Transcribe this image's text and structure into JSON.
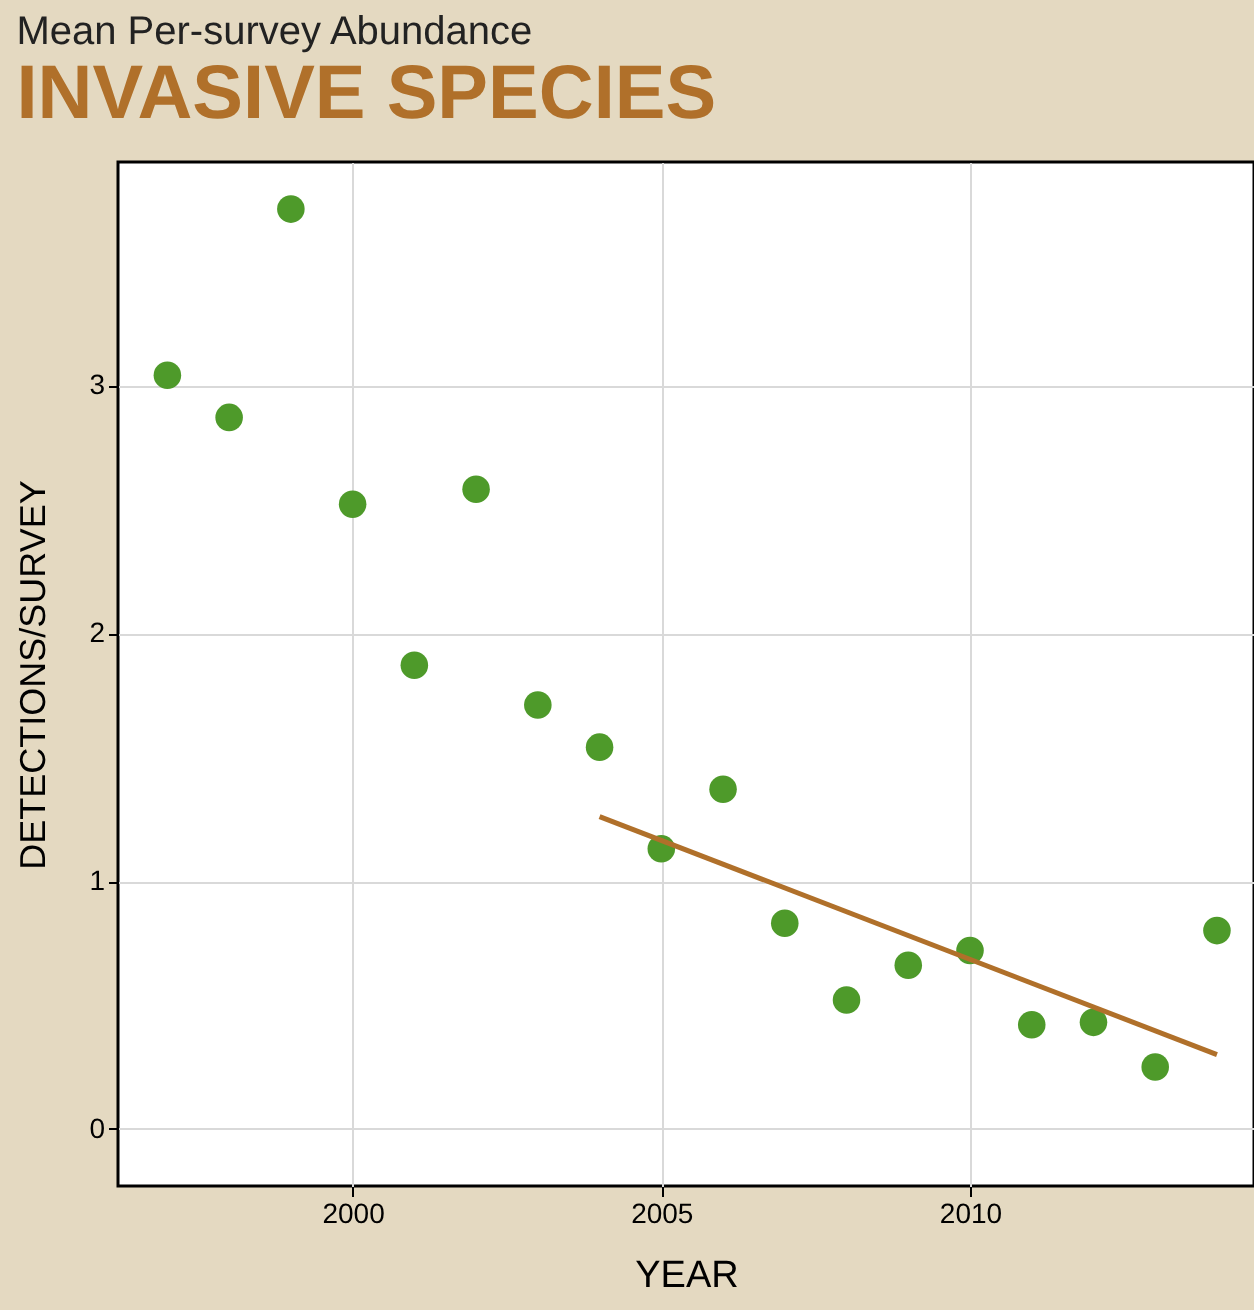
{
  "chart_data": {
    "type": "scatter",
    "title": "INVASIVE SPECIES",
    "subtitle": "Mean Per-survey Abundance",
    "xlabel": "YEAR",
    "ylabel": "DETECTIONS/SURVEY",
    "xlim": [
      1996.2,
      2014.6
    ],
    "ylim": [
      -0.23,
      3.9
    ],
    "xticks": [
      2000,
      2005,
      2010
    ],
    "yticks": [
      0,
      1,
      2,
      3
    ],
    "grid": true,
    "series": [
      {
        "color": "#4e9a2a",
        "marker": "circle",
        "x": [
          1997,
          1998,
          1999,
          2000,
          2001,
          2002,
          2003,
          2004,
          2005,
          2006,
          2007,
          2008,
          2009,
          2010,
          2011,
          2012,
          2013,
          2014
        ],
        "values": [
          3.04,
          2.87,
          3.71,
          2.52,
          1.87,
          2.58,
          1.71,
          1.54,
          1.13,
          1.37,
          0.83,
          0.52,
          0.66,
          0.72,
          0.42,
          0.43,
          0.25,
          0.8
        ]
      },
      {
        "type": "line",
        "color": "#b0702a",
        "x": [
          2004,
          2014
        ],
        "values": [
          1.26,
          0.3
        ]
      }
    ]
  }
}
